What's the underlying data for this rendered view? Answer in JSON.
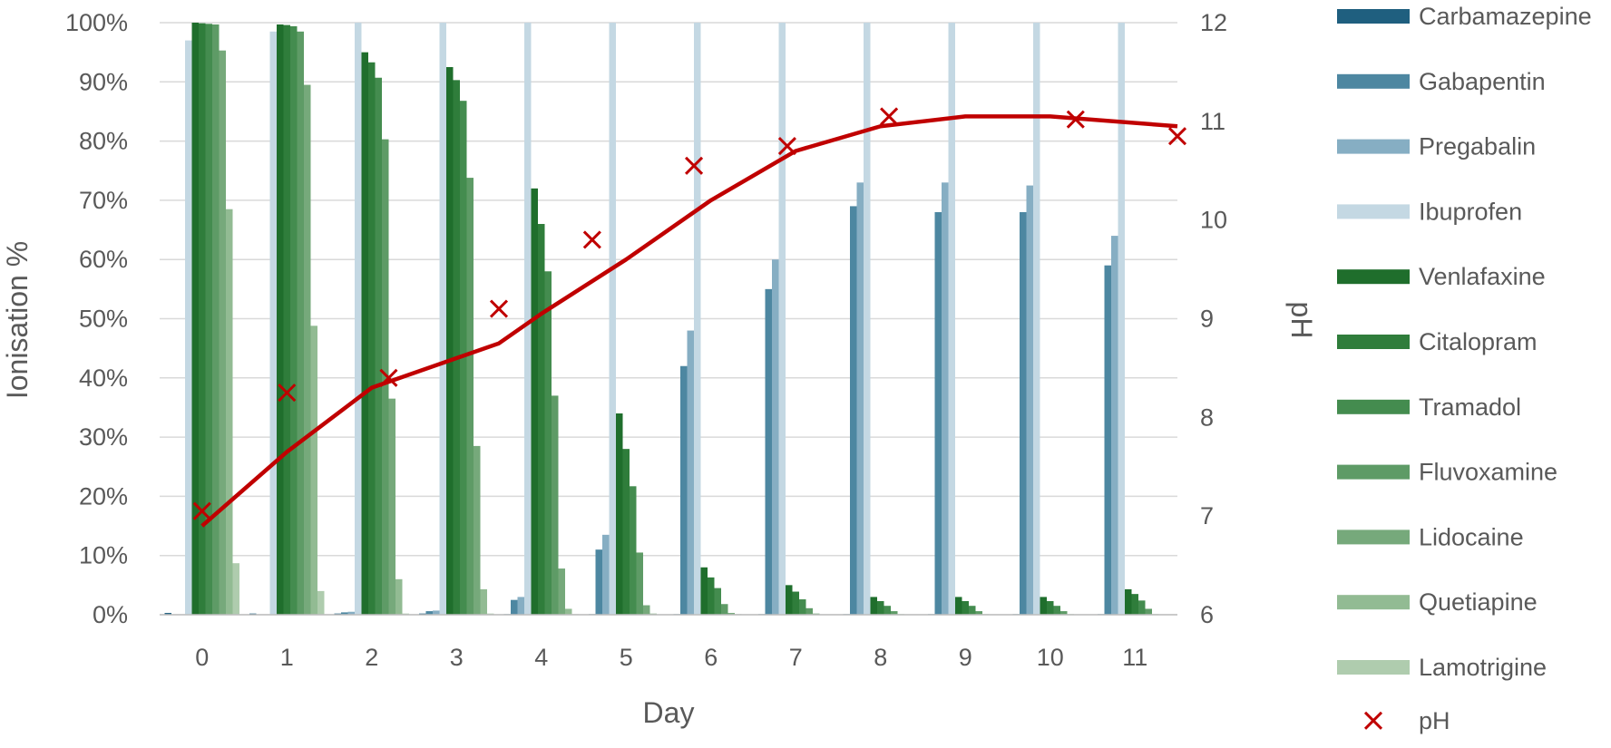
{
  "chart_data": {
    "type": "bar",
    "xlabel": "Day",
    "ylabel": "Ionisation %",
    "y2label": "pH",
    "categories": [
      "0",
      "1",
      "2",
      "3",
      "4",
      "5",
      "6",
      "7",
      "8",
      "9",
      "10",
      "11"
    ],
    "ylim": [
      0,
      100
    ],
    "y2lim": [
      6,
      12
    ],
    "yticks": [
      "0%",
      "10%",
      "20%",
      "30%",
      "40%",
      "50%",
      "60%",
      "70%",
      "80%",
      "90%",
      "100%"
    ],
    "y2ticks": [
      "6",
      "7",
      "8",
      "9",
      "10",
      "11",
      "12"
    ],
    "grid": true,
    "legend_position": "right",
    "series": [
      {
        "name": "Carbamazepine",
        "color": "#1f5f7f",
        "values": [
          0.3,
          0.2,
          0.2,
          0.2,
          0.1,
          0.1,
          0.1,
          0.1,
          0.1,
          0.1,
          0.1,
          0.1
        ]
      },
      {
        "name": "Gabapentin",
        "color": "#4d87a1",
        "values": [
          0,
          0,
          0.4,
          0.6,
          2.5,
          11,
          42,
          55,
          69,
          68,
          68,
          59
        ]
      },
      {
        "name": "Pregabalin",
        "color": "#86aec3",
        "values": [
          0,
          0,
          0.5,
          0.7,
          3,
          13.5,
          48,
          60,
          73,
          73,
          72.5,
          64
        ]
      },
      {
        "name": "Ibuprofen",
        "color": "#c4d8e3",
        "values": [
          97,
          98.5,
          100,
          100,
          100,
          100,
          100,
          100,
          100,
          100,
          100,
          100
        ]
      },
      {
        "name": "Venlafaxine",
        "color": "#1f6e2c",
        "values": [
          100,
          99.7,
          95,
          92.5,
          72,
          34,
          8,
          5,
          3,
          3,
          3,
          4.3
        ]
      },
      {
        "name": "Citalopram",
        "color": "#2f7d3b",
        "values": [
          99.9,
          99.6,
          93.3,
          90.3,
          66,
          28,
          6.3,
          3.9,
          2.3,
          2.3,
          2.3,
          3.5
        ]
      },
      {
        "name": "Tramadol",
        "color": "#448c4f",
        "values": [
          99.8,
          99.4,
          90.7,
          86.8,
          58,
          21.7,
          4.5,
          2.6,
          1.5,
          1.5,
          1.5,
          2.4
        ]
      },
      {
        "name": "Fluvoxamine",
        "color": "#5e9b66",
        "values": [
          99.7,
          98.5,
          80.3,
          73.8,
          37,
          10.5,
          1.8,
          1.1,
          0.6,
          0.6,
          0.6,
          1
        ]
      },
      {
        "name": "Lidocaine",
        "color": "#76a97b",
        "values": [
          95.3,
          89.5,
          36.5,
          28.5,
          7.8,
          1.6,
          0.3,
          0.2,
          0.1,
          0.1,
          0.1,
          0.1
        ]
      },
      {
        "name": "Quetiapine",
        "color": "#92bb93",
        "values": [
          68.5,
          48.8,
          6,
          4.3,
          1,
          0.2,
          0.1,
          0,
          0,
          0,
          0,
          0
        ]
      },
      {
        "name": "Lamotrigine",
        "color": "#afccae",
        "values": [
          8.7,
          4,
          0.2,
          0.2,
          0.1,
          0,
          0,
          0,
          0,
          0,
          0,
          0
        ]
      }
    ],
    "ph_trend": {
      "color": "#c00000",
      "x": [
        0,
        1,
        2,
        3,
        3.5,
        4,
        5,
        6,
        7,
        8,
        9,
        10,
        11.5
      ],
      "y": [
        6.9,
        7.65,
        8.3,
        8.6,
        8.75,
        9.05,
        9.6,
        10.2,
        10.7,
        10.95,
        11.05,
        11.05,
        10.95
      ]
    },
    "ph_points": {
      "name": "pH",
      "color": "#c00000",
      "x": [
        0,
        1,
        2.2,
        3.5,
        4.6,
        5.8,
        6.9,
        8.1,
        10.3,
        11.5
      ],
      "y": [
        7.05,
        8.25,
        8.4,
        9.1,
        9.8,
        10.55,
        10.75,
        11.05,
        11.02,
        10.85
      ]
    }
  }
}
